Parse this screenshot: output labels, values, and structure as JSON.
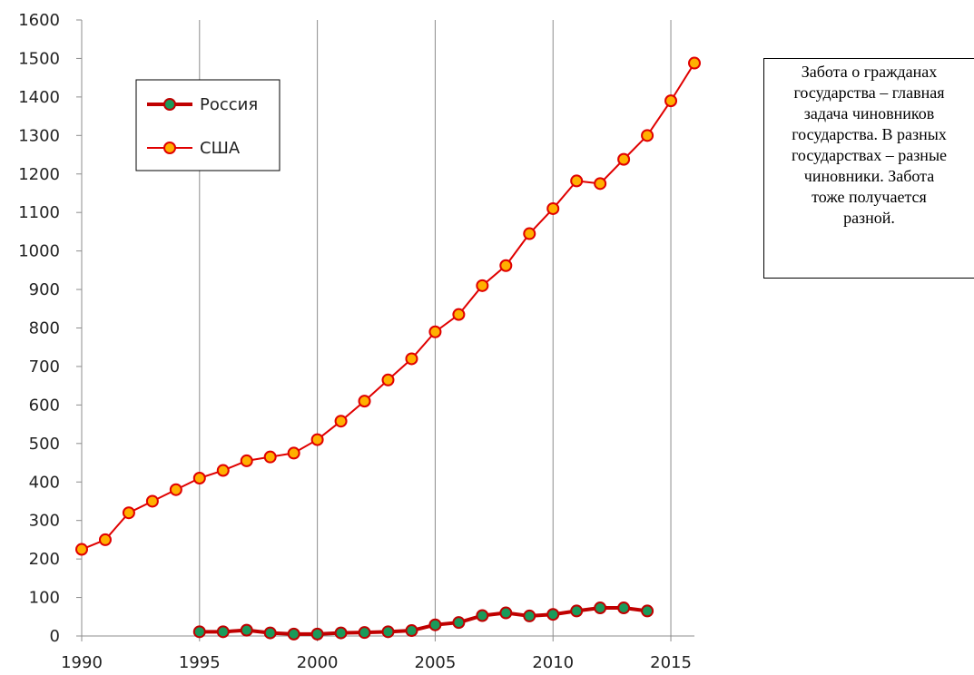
{
  "chart_data": {
    "type": "line",
    "x_axis": {
      "min": 1990,
      "max": 2016,
      "ticks": [
        1990,
        1995,
        2000,
        2005,
        2010,
        2015
      ]
    },
    "y_axis": {
      "min": 0,
      "max": 1600,
      "ticks": [
        0,
        100,
        200,
        300,
        400,
        500,
        600,
        700,
        800,
        900,
        1000,
        1100,
        1200,
        1300,
        1400,
        1500,
        1600
      ]
    },
    "grid": "vertical lines at x ticks",
    "legend": {
      "placement": "top-left inside plot"
    },
    "series": [
      {
        "name": "Россия",
        "line_color": "#c00000",
        "marker_color": "#1a9a5a",
        "x": [
          1995,
          1996,
          1997,
          1998,
          1999,
          2000,
          2001,
          2002,
          2003,
          2004,
          2005,
          2006,
          2007,
          2008,
          2009,
          2010,
          2011,
          2012,
          2013,
          2014
        ],
        "y": [
          11,
          11,
          15,
          8,
          5,
          5,
          8,
          9,
          11,
          14,
          29,
          35,
          53,
          60,
          52,
          56,
          65,
          73,
          73,
          65
        ]
      },
      {
        "name": "США",
        "line_color": "#e00000",
        "marker_color": "#ffb000",
        "x": [
          1990,
          1991,
          1992,
          1993,
          1994,
          1995,
          1996,
          1997,
          1998,
          1999,
          2000,
          2001,
          2002,
          2003,
          2004,
          2005,
          2006,
          2007,
          2008,
          2009,
          2010,
          2011,
          2012,
          2013,
          2014,
          2015,
          2016
        ],
        "y": [
          225,
          250,
          320,
          350,
          380,
          410,
          430,
          455,
          465,
          475,
          510,
          558,
          610,
          665,
          720,
          790,
          835,
          910,
          962,
          1045,
          1110,
          1182,
          1175,
          1238,
          1300,
          1390,
          1488
        ]
      }
    ]
  },
  "note": {
    "lines": [
      "Забота о гражданах",
      "государства – главная",
      "задача чиновников",
      "государства. В разных",
      "государствах – разные",
      "чиновники. Забота",
      "тоже получается",
      "разной."
    ]
  }
}
